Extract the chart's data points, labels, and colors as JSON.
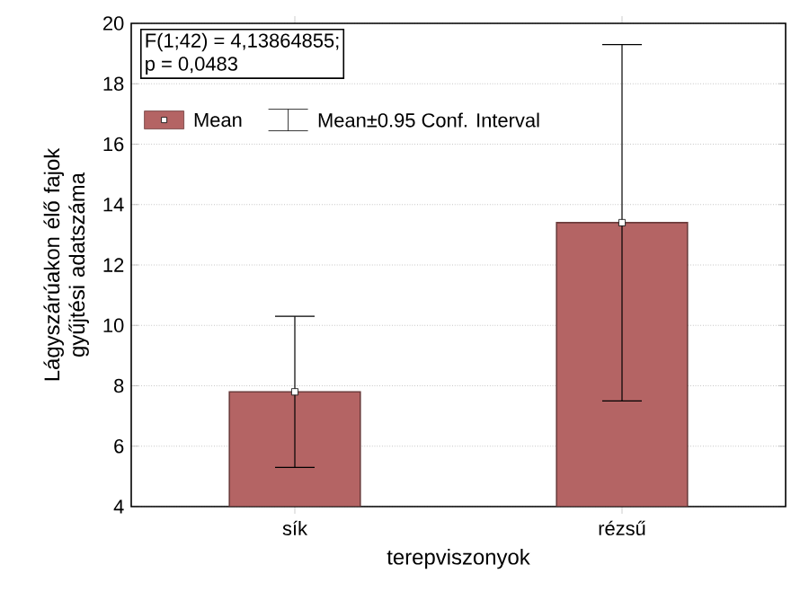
{
  "chart_data": {
    "type": "bar",
    "xlabel": "terepviszonyok",
    "ylabel": "Lágyszárúakon élő fajok gyűjtési adatszáma",
    "categories": [
      "sík",
      "rézsű"
    ],
    "series": [
      {
        "name": "Mean",
        "color": "#b46464",
        "values": [
          7.8,
          13.4
        ],
        "errors": [
          [
            5.3,
            10.3
          ],
          [
            7.5,
            19.3
          ]
        ]
      },
      {
        "type": "scatter",
        "x": [
          "sík",
          "rézsű"
        ],
        "color": "#ffffff",
        "values": [
          7.8,
          13.4
        ]
      }
    ],
    "ylim": [
      4,
      20
    ],
    "yticks": [
      4,
      6,
      8,
      10,
      12,
      14,
      16,
      18,
      20
    ],
    "grid": "y",
    "legend": "top left",
    "marker": "square",
    "annotations": [
      "F(1;42) = 4,13864855;",
      "p = 0,0483",
      "Mean±0.95 Conf. Interval"
    ]
  }
}
